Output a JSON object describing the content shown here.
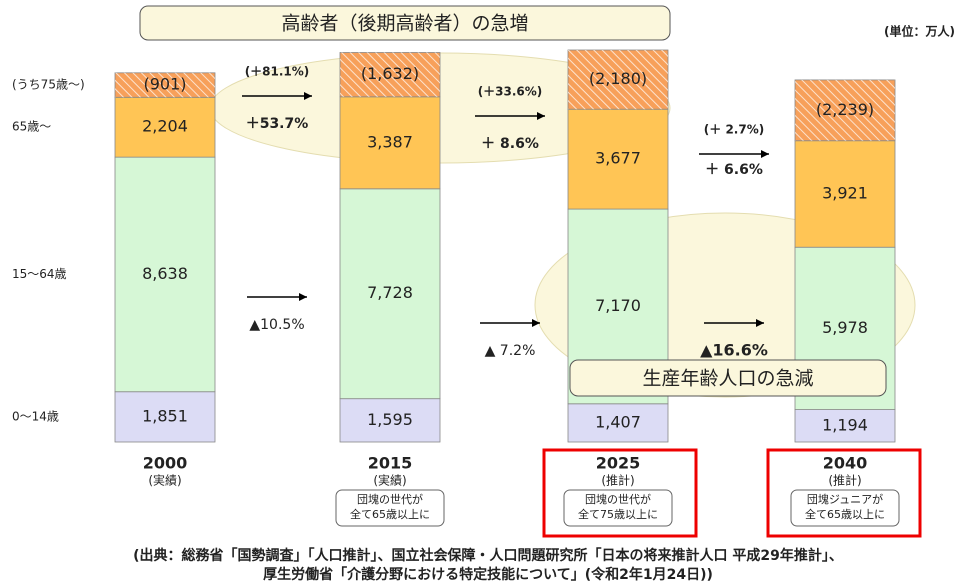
{
  "chart_data": {
    "type": "bar",
    "stacked": true,
    "title": "高齢者（後期高齢者）の急増",
    "unit": "(単位：万人)",
    "categories": [
      "2000",
      "2015",
      "2025",
      "2040"
    ],
    "category_notes": [
      "(実績)",
      "(実績)",
      "(推計)",
      "(推計)"
    ],
    "category_comments": [
      null,
      [
        "団塊の世代が",
        "全て65歳以上に"
      ],
      [
        "団塊の世代が",
        "全て75歳以上に"
      ],
      [
        "団塊ジュニアが",
        "全て65歳以上に"
      ]
    ],
    "highlighted_categories": [
      "2025",
      "2040"
    ],
    "series": [
      {
        "name": "0～14歳",
        "color": "#dcdcf5",
        "values": [
          1851,
          1595,
          1407,
          1194
        ],
        "value_labels": [
          "1,851",
          "1,595",
          "1,407",
          "1,194"
        ]
      },
      {
        "name": "15～64歳",
        "color": "#d6f7d6",
        "values": [
          8638,
          7728,
          7170,
          5978
        ],
        "value_labels": [
          "8,638",
          "7,728",
          "7,170",
          "5,978"
        ]
      },
      {
        "name": "65歳～",
        "color": "#ffc555",
        "values": [
          2204,
          3387,
          3677,
          3921
        ],
        "value_labels": [
          "2,204",
          "3,387",
          "3,677",
          "3,921"
        ],
        "hatched": false
      },
      {
        "name": "(うち75歳～)",
        "color": "#f7a05a",
        "values": [
          901,
          1632,
          2180,
          2239
        ],
        "value_labels": [
          "(901)",
          "(1,632)",
          "(2,180)",
          "(2,239)"
        ],
        "hatched": true
      }
    ],
    "growth": [
      {
        "over75": "(＋81.1%)",
        "over65": "＋53.7%",
        "working": "▲10.5%"
      },
      {
        "over75": "(＋33.6%)",
        "over65": "＋ 8.6%",
        "working": "▲ 7.2%"
      },
      {
        "over75": "(＋ 2.7%)",
        "over65": "＋ 6.6%",
        "working": "▲16.6%"
      }
    ],
    "working_callout": "生産年齢人口の急減",
    "source": [
      "(出典：総務省「国勢調査」「人口推計」、国立社会保障・人口問題研究所「日本の将来推計人口 平成29年推計」、",
      "厚生労働省「介護分野における特定技能について」(令和2年1月24日))"
    ]
  }
}
